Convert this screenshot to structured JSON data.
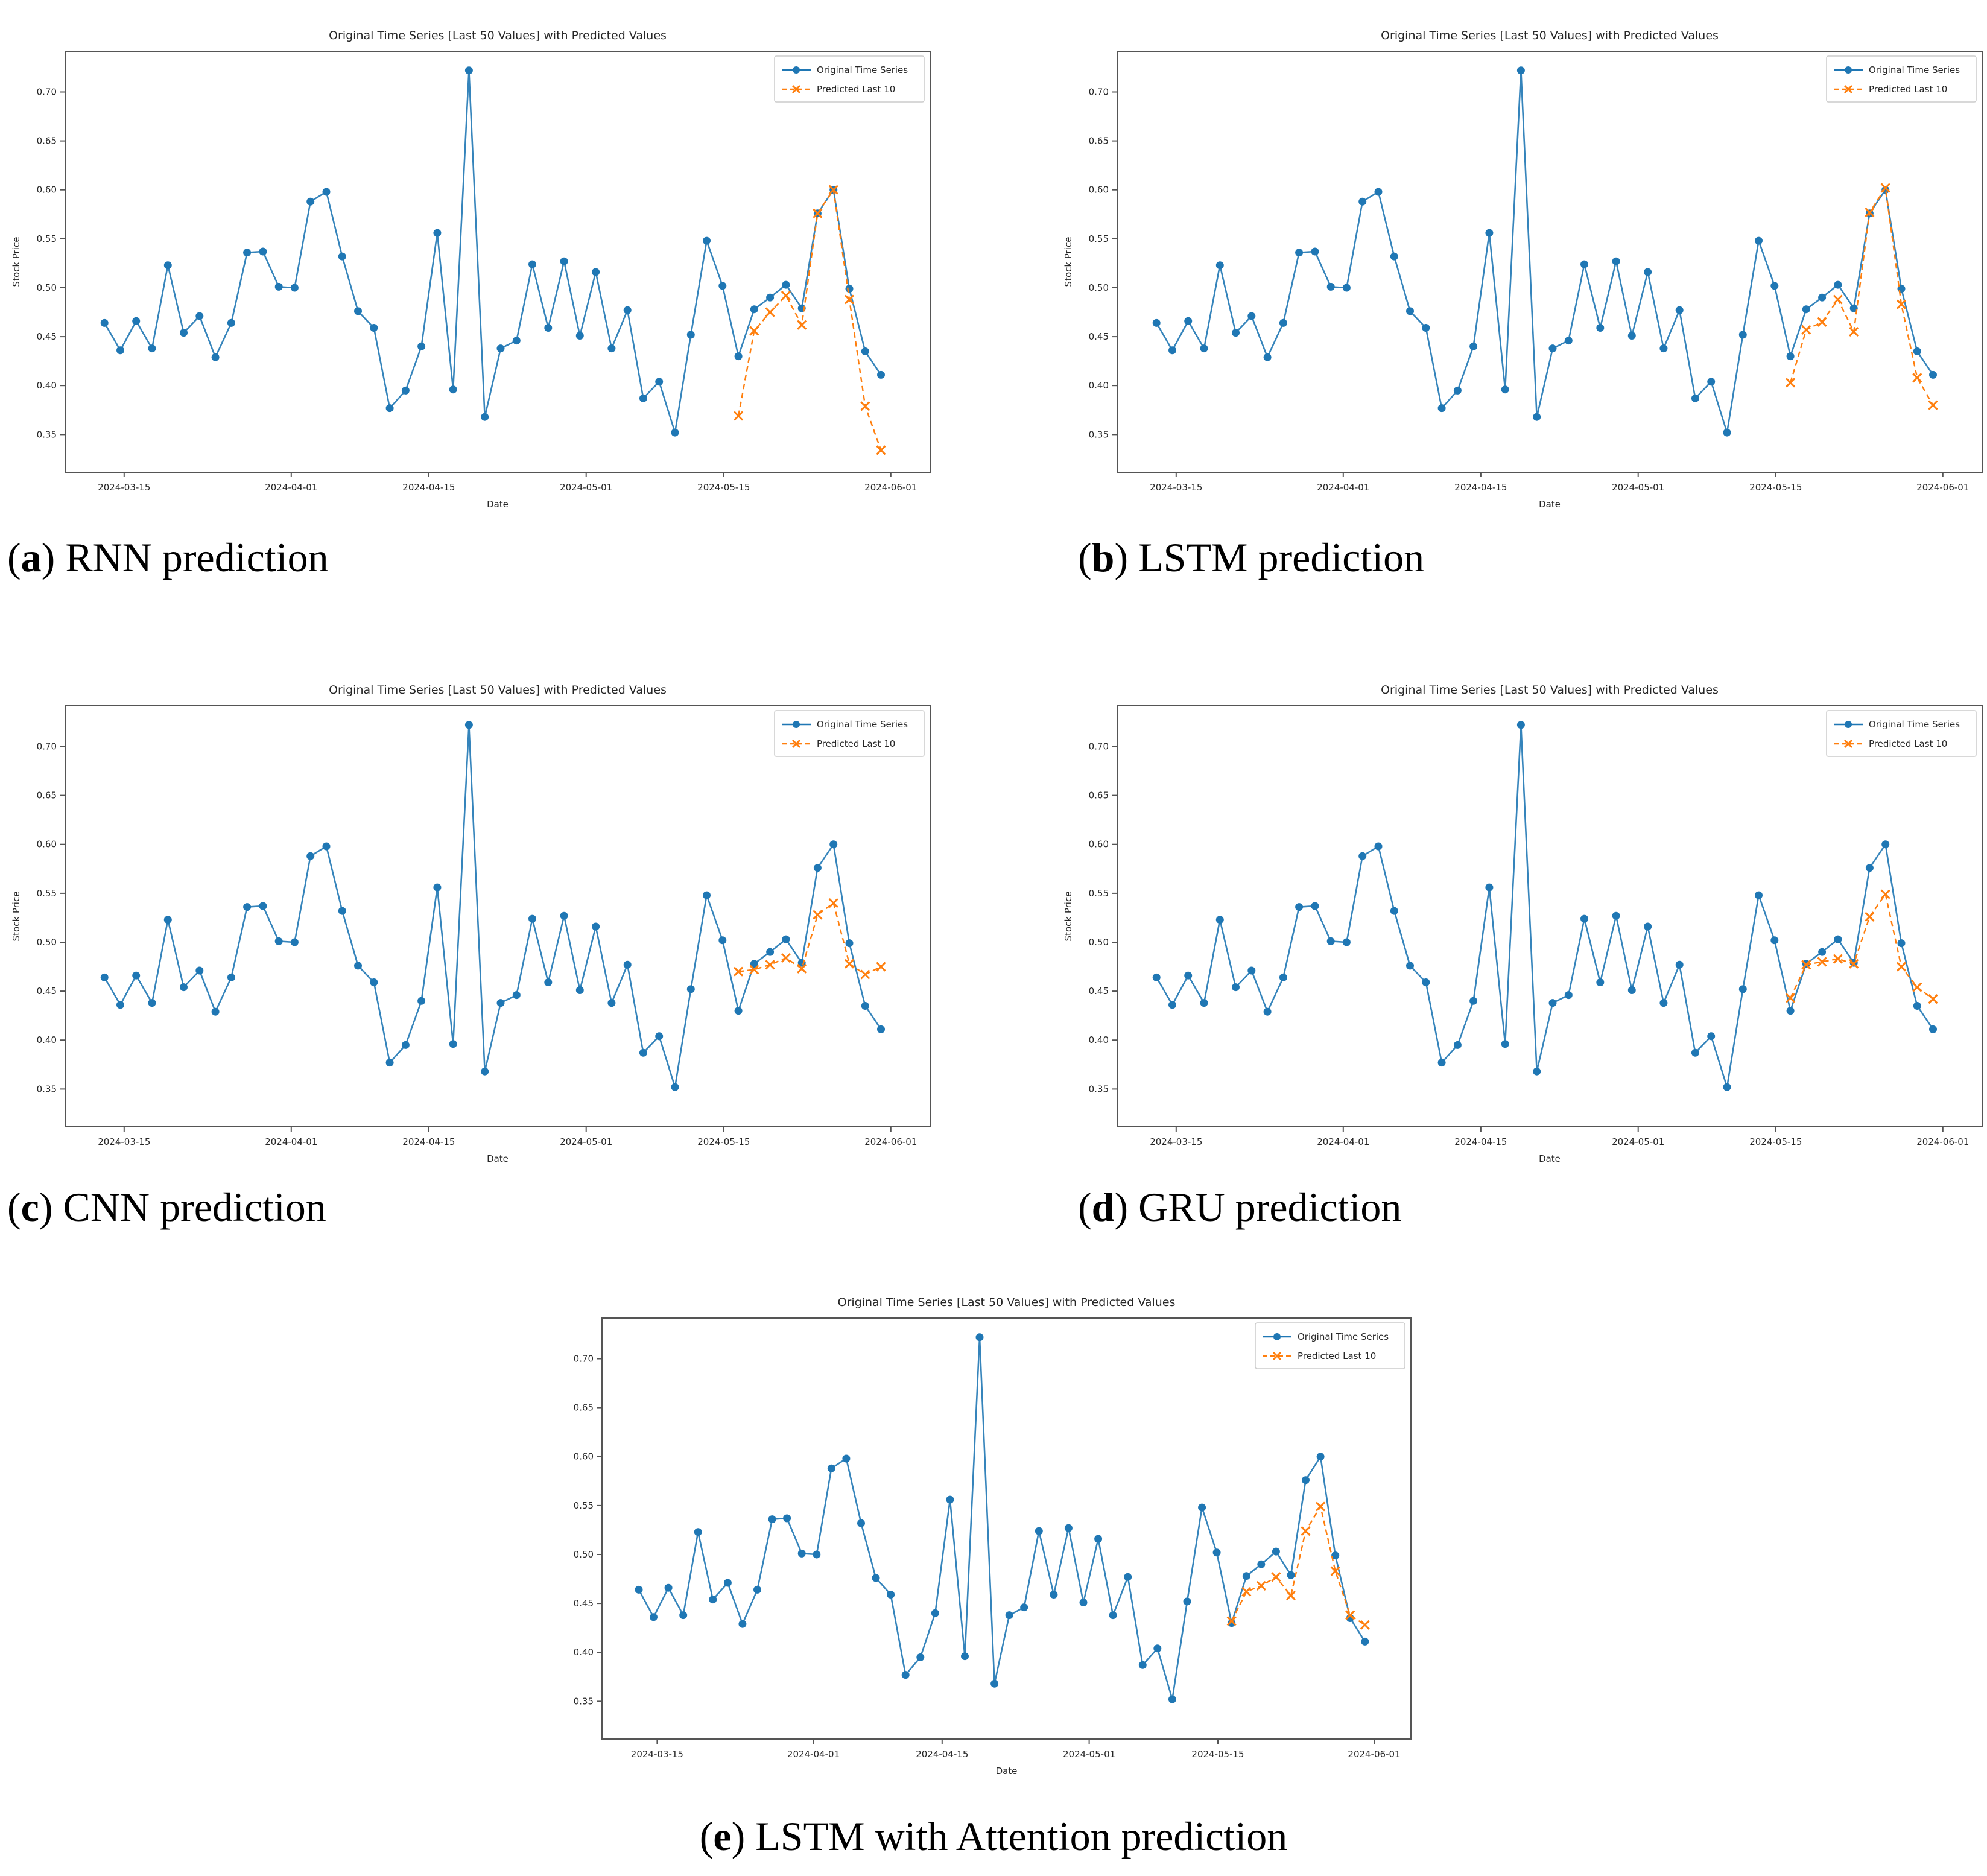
{
  "page": {
    "background": "#ffffff"
  },
  "chart_data": {
    "type": "line",
    "title": "Original Time Series [Last 50 Values] with Predicted Values",
    "xlabel": "Date",
    "ylabel": "Stock Price",
    "grid": false,
    "legend_position": "upper right",
    "x_tick_labels": [
      "2024-03-15",
      "2024-04-01",
      "2024-04-15",
      "2024-05-01",
      "2024-05-15",
      "2024-06-01"
    ],
    "y_ticks": [
      0.35,
      0.4,
      0.45,
      0.5,
      0.55,
      0.6,
      0.65,
      0.7
    ],
    "ylim": [
      0.3114,
      0.7416
    ],
    "legend": [
      {
        "label": "Original Time Series",
        "color": "#1f77b4",
        "marker": "circle",
        "line": "solid"
      },
      {
        "label": "Predicted Last 10",
        "color": "#ff7f0e",
        "marker": "x",
        "line": "dashed"
      }
    ],
    "colors": {
      "original": "#1f77b4",
      "predicted": "#ff7f0e"
    },
    "original_series": [
      0.464,
      0.436,
      0.466,
      0.438,
      0.523,
      0.454,
      0.471,
      0.429,
      0.464,
      0.536,
      0.537,
      0.501,
      0.5,
      0.588,
      0.598,
      0.532,
      0.476,
      0.459,
      0.377,
      0.395,
      0.44,
      0.556,
      0.396,
      0.722,
      0.368,
      0.438,
      0.446,
      0.524,
      0.459,
      0.527,
      0.451,
      0.516,
      0.438,
      0.477,
      0.387,
      0.404,
      0.352,
      0.452,
      0.548,
      0.502,
      0.43,
      0.478,
      0.49,
      0.503,
      0.479,
      0.576,
      0.6,
      0.499,
      0.435,
      0.411
    ],
    "predicted_start_index": 40,
    "charts": [
      {
        "id": "a",
        "model": "RNN",
        "caption": {
          "open": "(",
          "letter": "a",
          "close": ")",
          "text": " RNN prediction"
        },
        "predicted_last_10": [
          0.369,
          0.456,
          0.475,
          0.492,
          0.462,
          0.576,
          0.6,
          0.488,
          0.379,
          0.334
        ]
      },
      {
        "id": "b",
        "model": "LSTM",
        "caption": {
          "open": "(",
          "letter": "b",
          "close": ")",
          "text": " LSTM prediction"
        },
        "predicted_last_10": [
          0.403,
          0.457,
          0.465,
          0.488,
          0.455,
          0.577,
          0.602,
          0.483,
          0.408,
          0.38
        ]
      },
      {
        "id": "c",
        "model": "CNN",
        "caption": {
          "open": "(",
          "letter": "c",
          "close": ")",
          "text": " CNN prediction"
        },
        "predicted_last_10": [
          0.47,
          0.472,
          0.477,
          0.484,
          0.473,
          0.528,
          0.54,
          0.478,
          0.467,
          0.475
        ]
      },
      {
        "id": "d",
        "model": "GRU",
        "caption": {
          "open": "(",
          "letter": "d",
          "close": ")",
          "text": " GRU prediction"
        },
        "predicted_last_10": [
          0.443,
          0.477,
          0.48,
          0.483,
          0.478,
          0.526,
          0.549,
          0.475,
          0.454,
          0.442
        ]
      },
      {
        "id": "e",
        "model": "LSTM with Attention",
        "caption": {
          "open": "(",
          "letter": "e",
          "close": ")",
          "text": " LSTM with Attention prediction"
        },
        "predicted_last_10": [
          0.432,
          0.462,
          0.468,
          0.477,
          0.458,
          0.524,
          0.549,
          0.483,
          0.438,
          0.428
        ]
      }
    ]
  }
}
